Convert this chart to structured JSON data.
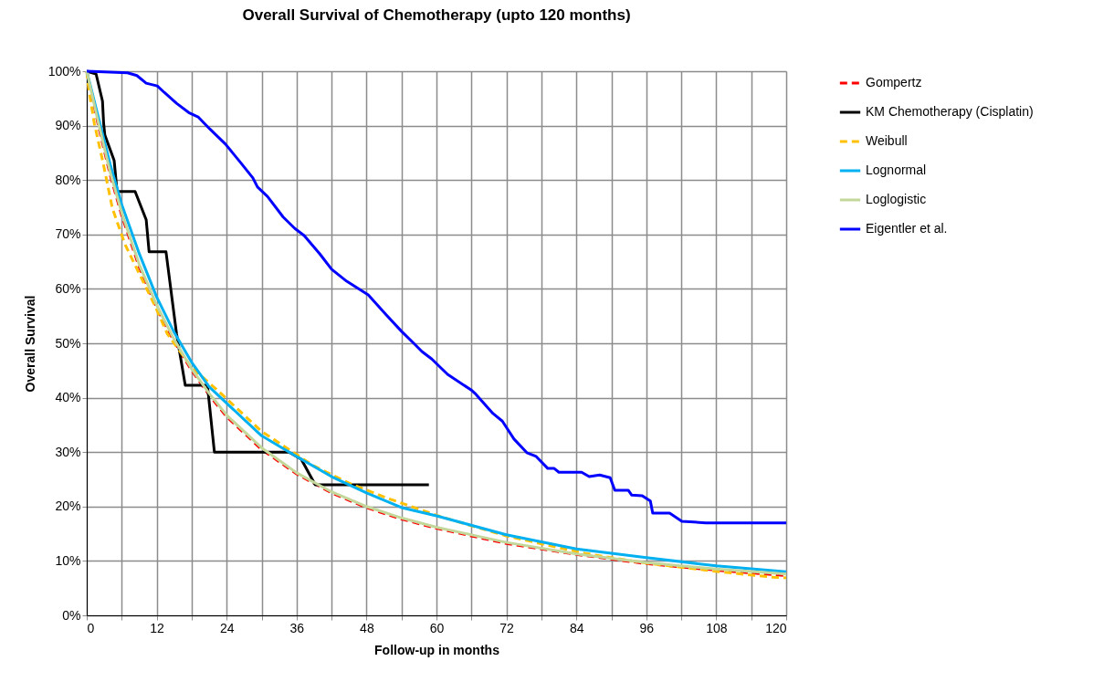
{
  "chart_data": {
    "type": "line",
    "title": "Overall Survival of Chemotherapy (upto 120 months)",
    "xlabel": "Follow-up in months",
    "ylabel": "Overall Survival",
    "xlim": [
      0,
      120
    ],
    "ylim": [
      0,
      100
    ],
    "xticks": [
      0,
      {
        "value": 6,
        "label": null
      },
      12,
      {
        "value": 18,
        "label": null
      },
      24,
      {
        "value": 30,
        "label": null
      },
      36,
      {
        "value": 42,
        "label": null
      },
      48,
      {
        "value": 54,
        "label": null
      },
      60,
      {
        "value": 66,
        "label": null
      },
      72,
      {
        "value": 78,
        "label": null
      },
      84,
      {
        "value": 90,
        "label": null
      },
      96,
      {
        "value": 102,
        "label": null
      },
      108,
      {
        "value": 114,
        "label": null
      },
      120
    ],
    "yticks": [
      {
        "value": 0,
        "label": "0%"
      },
      {
        "value": 10,
        "label": "10%"
      },
      {
        "value": 20,
        "label": "20%"
      },
      {
        "value": 30,
        "label": "30%"
      },
      {
        "value": 40,
        "label": "40%"
      },
      {
        "value": 50,
        "label": "50%"
      },
      {
        "value": 60,
        "label": "60%"
      },
      {
        "value": 70,
        "label": "70%"
      },
      {
        "value": 80,
        "label": "80%"
      },
      {
        "value": 90,
        "label": "90%"
      },
      {
        "value": 100,
        "label": "100%"
      }
    ],
    "grid": true,
    "legend": "right",
    "marker": "none",
    "series": [
      {
        "name": "Gompertz",
        "color": "#ff0000",
        "line_style": "dashed",
        "x": [
          0,
          2,
          4,
          6,
          9,
          12,
          15,
          18,
          21,
          24,
          30,
          36,
          42,
          48,
          54,
          60,
          72,
          84,
          96,
          108,
          120
        ],
        "values": [
          100,
          90,
          81,
          73.5,
          64,
          56.5,
          50.3,
          45,
          40.5,
          36.5,
          30.5,
          26,
          22.5,
          19.8,
          17.7,
          16,
          13.2,
          11.2,
          9.5,
          8.3,
          7.3
        ]
      },
      {
        "name": "KM Chemotherapy (Cisplatin)",
        "color": "#000000",
        "line_style": "solid",
        "x": [
          0,
          1.6,
          2.7,
          2.9,
          3.1,
          4.7,
          5.2,
          8.3,
          10.2,
          10.7,
          13.6,
          15.4,
          16.9,
          20.7,
          21.9,
          34.7,
          36.8,
          39.2,
          58.7
        ],
        "values": [
          100,
          99.5,
          94.5,
          90.4,
          88.3,
          83.6,
          77.9,
          77.9,
          72.7,
          66.8,
          66.8,
          51.8,
          42.3,
          42.3,
          30,
          30,
          28.7,
          24,
          24
        ]
      },
      {
        "name": "Weibull",
        "color": "#ffc000",
        "line_style": "dashed",
        "x": [
          0,
          0.3,
          1.3,
          2.8,
          4.4,
          6.6,
          9.1,
          11.7,
          13.8,
          18,
          22.2,
          30,
          38.9,
          45,
          51.4,
          60.8,
          72,
          85.4,
          96,
          107.8,
          117.8,
          120
        ],
        "values": [
          100,
          97,
          90.4,
          83.2,
          74.8,
          68.1,
          62.6,
          56.9,
          51.8,
          45.5,
          41.6,
          33.8,
          27.5,
          24.3,
          21.6,
          18.1,
          14.6,
          11.4,
          9.6,
          8.1,
          7,
          6.9
        ]
      },
      {
        "name": "Lognormal",
        "color": "#00b0f0",
        "line_style": "solid",
        "x": [
          0,
          2,
          4,
          6,
          9,
          12,
          15,
          18,
          21,
          24,
          30,
          36,
          42,
          48,
          54,
          60,
          72,
          84,
          96,
          108,
          120
        ],
        "values": [
          100,
          91.5,
          83,
          75.5,
          66.5,
          58.5,
          52,
          46.5,
          42,
          39,
          33,
          29.2,
          25.5,
          22.5,
          19.8,
          18.3,
          14.8,
          12.2,
          10.6,
          9.1,
          8
        ]
      },
      {
        "name": "Loglogistic",
        "color": "#c4d79b",
        "line_style": "solid",
        "x": [
          0,
          2,
          4,
          6,
          9,
          12,
          15,
          18,
          21,
          24,
          30,
          36,
          42,
          48,
          54,
          60,
          72,
          84,
          96,
          108,
          120
        ],
        "values": [
          100,
          90.5,
          81.5,
          74,
          64.5,
          57,
          50.7,
          45.3,
          40.8,
          36.8,
          30.8,
          26.2,
          22.7,
          20,
          17.9,
          16.2,
          13.4,
          11.3,
          9.7,
          8.5,
          7.6
        ]
      },
      {
        "name": "Eigentler et al.",
        "color": "#0000ff",
        "line_style": "solid",
        "x": [
          0,
          7,
          8.6,
          10.2,
          12.1,
          13.3,
          15.4,
          17.5,
          19.1,
          21.1,
          23.8,
          26.4,
          28.5,
          29.3,
          31,
          33.7,
          35.7,
          37.3,
          40,
          42,
          44.6,
          48.3,
          51.4,
          54,
          56.1,
          57.5,
          59.2,
          61.9,
          66.1,
          66.6,
          69.7,
          71.3,
          73.3,
          75.5,
          77.1,
          79.1,
          80.2,
          81,
          84.9,
          86.2,
          88,
          89.8,
          90.6,
          92.9,
          93.5,
          95.3,
          96.7,
          97.1,
          100,
          102.1,
          106.2,
          120
        ],
        "values": [
          100,
          99.7,
          99.2,
          97.8,
          97.3,
          96.1,
          94.1,
          92.4,
          91.6,
          89.4,
          86.6,
          83.2,
          80.4,
          78.7,
          77,
          73.2,
          71.1,
          69.8,
          66.4,
          63.6,
          61.4,
          58.9,
          55.2,
          52.2,
          50,
          48.5,
          47.1,
          44.3,
          41.3,
          40.8,
          37.1,
          35.7,
          32.4,
          29.9,
          29.2,
          27,
          27,
          26.3,
          26.3,
          25.5,
          25.8,
          25.3,
          23,
          23,
          22.1,
          22,
          21,
          18.8,
          18.8,
          17.3,
          17,
          17
        ]
      }
    ]
  }
}
